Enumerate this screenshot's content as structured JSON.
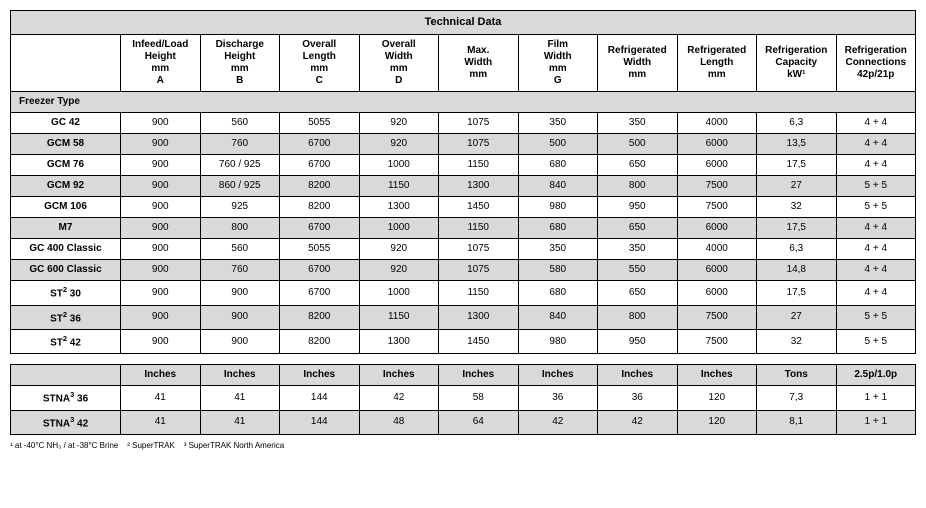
{
  "title": "Technical Data",
  "columns": [
    {
      "l1": "",
      "l2": "",
      "l3": "",
      "l4": ""
    },
    {
      "l1": "Infeed/Load",
      "l2": "Height",
      "l3": "mm",
      "l4": "A"
    },
    {
      "l1": "Discharge",
      "l2": "Height",
      "l3": "mm",
      "l4": "B"
    },
    {
      "l1": "Overall",
      "l2": "Length",
      "l3": "mm",
      "l4": "C"
    },
    {
      "l1": "Overall",
      "l2": "Width",
      "l3": "mm",
      "l4": "D"
    },
    {
      "l1": "Max.",
      "l2": "Width",
      "l3": "mm",
      "l4": ""
    },
    {
      "l1": "Film",
      "l2": "Width",
      "l3": "mm",
      "l4": "G"
    },
    {
      "l1": "Refrigerated",
      "l2": "Width",
      "l3": "mm",
      "l4": ""
    },
    {
      "l1": "Refrigerated",
      "l2": "Length",
      "l3": "mm",
      "l4": ""
    },
    {
      "l1": "Refrigeration",
      "l2": "Capacity",
      "l3": "kW¹",
      "l4": ""
    },
    {
      "l1": "Refrigeration",
      "l2": "Connections",
      "l3": "42p/21p",
      "l4": ""
    }
  ],
  "section_label": "Freezer Type",
  "rows": [
    {
      "label": "GC 42",
      "cells": [
        "900",
        "560",
        "5055",
        "920",
        "1075",
        "350",
        "350",
        "4000",
        "6,3",
        "4 + 4"
      ],
      "shade": false
    },
    {
      "label": "GCM 58",
      "cells": [
        "900",
        "760",
        "6700",
        "920",
        "1075",
        "500",
        "500",
        "6000",
        "13,5",
        "4 + 4"
      ],
      "shade": true
    },
    {
      "label": "GCM 76",
      "cells": [
        "900",
        "760 / 925",
        "6700",
        "1000",
        "1150",
        "680",
        "650",
        "6000",
        "17,5",
        "4 + 4"
      ],
      "shade": false
    },
    {
      "label": "GCM 92",
      "cells": [
        "900",
        "860 / 925",
        "8200",
        "1150",
        "1300",
        "840",
        "800",
        "7500",
        "27",
        "5 + 5"
      ],
      "shade": true
    },
    {
      "label": "GCM 106",
      "cells": [
        "900",
        "925",
        "8200",
        "1300",
        "1450",
        "980",
        "950",
        "7500",
        "32",
        "5 + 5"
      ],
      "shade": false
    },
    {
      "label": "M7",
      "cells": [
        "900",
        "800",
        "6700",
        "1000",
        "1150",
        "680",
        "650",
        "6000",
        "17,5",
        "4 + 4"
      ],
      "shade": true
    },
    {
      "label": "GC 400 Classic",
      "cells": [
        "900",
        "560",
        "5055",
        "920",
        "1075",
        "350",
        "350",
        "4000",
        "6,3",
        "4 + 4"
      ],
      "shade": false
    },
    {
      "label": "GC 600 Classic",
      "cells": [
        "900",
        "760",
        "6700",
        "920",
        "1075",
        "580",
        "550",
        "6000",
        "14,8",
        "4 + 4"
      ],
      "shade": true
    },
    {
      "label": "ST² 30",
      "cells": [
        "900",
        "900",
        "6700",
        "1000",
        "1150",
        "680",
        "650",
        "6000",
        "17,5",
        "4 + 4"
      ],
      "shade": false
    },
    {
      "label": "ST² 36",
      "cells": [
        "900",
        "900",
        "8200",
        "1150",
        "1300",
        "840",
        "800",
        "7500",
        "27",
        "5 + 5"
      ],
      "shade": true
    },
    {
      "label": "ST² 42",
      "cells": [
        "900",
        "900",
        "8200",
        "1300",
        "1450",
        "980",
        "950",
        "7500",
        "32",
        "5 + 5"
      ],
      "shade": false
    }
  ],
  "table2": {
    "header": [
      "",
      "Inches",
      "Inches",
      "Inches",
      "Inches",
      "Inches",
      "Inches",
      "Inches",
      "Inches",
      "Tons",
      "2.5p/1.0p"
    ],
    "rows": [
      {
        "label": "STNA³ 36",
        "cells": [
          "41",
          "41",
          "144",
          "42",
          "58",
          "36",
          "36",
          "120",
          "7,3",
          "1 + 1"
        ],
        "shade": false
      },
      {
        "label": "STNA³ 42",
        "cells": [
          "41",
          "41",
          "144",
          "48",
          "64",
          "42",
          "42",
          "120",
          "8,1",
          "1 + 1"
        ],
        "shade": true
      }
    ]
  },
  "footnotes": "¹ at -40°C NH₃ / at -38°C Brine    ² SuperTRAK    ³ SuperTRAK North America"
}
